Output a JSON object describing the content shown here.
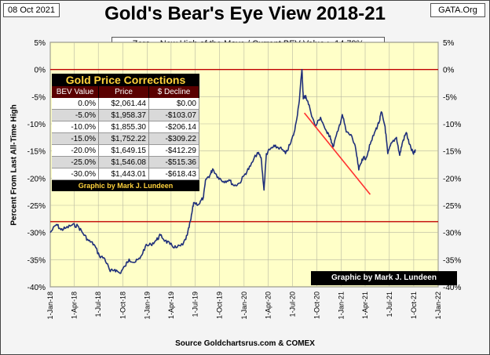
{
  "header": {
    "date": "08 Oct 2021",
    "org": "GATA.Org",
    "title": "Gold's Bear's Eye View 2018-21",
    "subtitle": "Zero = New High of the Move / Current  BEV Value : -14.79%",
    "source": "Source Goldchartsrus.com & COMEX"
  },
  "corrections_table": {
    "title": "Gold Price Corrections",
    "headers": [
      "BEV Value",
      "Price",
      "$ Decline"
    ],
    "rows": [
      [
        "0.0%",
        "$2,061.44",
        "$0.00"
      ],
      [
        "-5.0%",
        "$1,958.37",
        "-$103.07"
      ],
      [
        "-10.0%",
        "$1,855.30",
        "-$206.14"
      ],
      [
        "-15.0%",
        "$1,752.22",
        "-$309.22"
      ],
      [
        "-20.0%",
        "$1,649.15",
        "-$412.29"
      ],
      [
        "-25.0%",
        "$1,546.08",
        "-$515.36"
      ],
      [
        "-30.0%",
        "$1,443.01",
        "-$618.43"
      ]
    ],
    "footer": "Graphic by Mark J. Lundeen"
  },
  "credit_box": "Graphic by Mark J. Lundeen",
  "colors": {
    "plot_bg": "#ffffc8",
    "series": "#1f2f7a",
    "ref_lines": "#c00000",
    "trend": "#ff3030"
  },
  "chart_data": {
    "type": "line",
    "title": "Gold's Bear's Eye View 2018-21",
    "ylabel": "Percent  From Last  All-Time  High",
    "xlabel": "",
    "ylim": [
      -40,
      5
    ],
    "xlim": [
      "2018-01-01",
      "2022-01-01"
    ],
    "y_ticks": [
      "5%",
      "0%",
      "-5%",
      "-10%",
      "-15%",
      "-20%",
      "-25%",
      "-30%",
      "-35%",
      "-40%"
    ],
    "x_ticks": [
      "1-Jan-18",
      "1-Apr-18",
      "1-Jul-18",
      "1-Oct-18",
      "1-Jan-19",
      "1-Apr-19",
      "1-Jul-19",
      "1-Oct-19",
      "1-Jan-20",
      "1-Apr-20",
      "1-Jul-20",
      "1-Oct-20",
      "1-Jan-21",
      "1-Apr-21",
      "1-Jul-21",
      "1-Oct-21",
      "1-Jan-22"
    ],
    "grid": true,
    "reference_lines": [
      0,
      -28
    ],
    "trend_line": [
      {
        "x": "2020-08-15",
        "y": -8
      },
      {
        "x": "2021-04-20",
        "y": -23
      }
    ],
    "series": [
      {
        "points": [
          [
            "2018-01-01",
            -30
          ],
          [
            "2018-01-25",
            -28.5
          ],
          [
            "2018-02-10",
            -29.5
          ],
          [
            "2018-03-01",
            -29.2
          ],
          [
            "2018-03-25",
            -28.6
          ],
          [
            "2018-04-15",
            -28.8
          ],
          [
            "2018-05-05",
            -30.2
          ],
          [
            "2018-05-25",
            -31.5
          ],
          [
            "2018-06-15",
            -32.2
          ],
          [
            "2018-07-05",
            -34.3
          ],
          [
            "2018-07-25",
            -34.8
          ],
          [
            "2018-08-15",
            -37.2
          ],
          [
            "2018-09-01",
            -36.8
          ],
          [
            "2018-09-20",
            -37.5
          ],
          [
            "2018-10-10",
            -36.2
          ],
          [
            "2018-10-25",
            -34.9
          ],
          [
            "2018-11-15",
            -35.5
          ],
          [
            "2018-12-05",
            -34.8
          ],
          [
            "2018-12-25",
            -32.6
          ],
          [
            "2019-01-15",
            -32.2
          ],
          [
            "2019-02-05",
            -31.4
          ],
          [
            "2019-02-20",
            -30.5
          ],
          [
            "2019-03-10",
            -31.5
          ],
          [
            "2019-03-28",
            -32.2
          ],
          [
            "2019-04-20",
            -32.8
          ],
          [
            "2019-05-15",
            -32.3
          ],
          [
            "2019-06-01",
            -30.5
          ],
          [
            "2019-06-15",
            -27.5
          ],
          [
            "2019-06-25",
            -24.5
          ],
          [
            "2019-07-15",
            -24.8
          ],
          [
            "2019-08-01",
            -23.5
          ],
          [
            "2019-08-10",
            -20.2
          ],
          [
            "2019-08-25",
            -19.5
          ],
          [
            "2019-09-05",
            -18.3
          ],
          [
            "2019-09-25",
            -19.8
          ],
          [
            "2019-10-15",
            -20.6
          ],
          [
            "2019-11-05",
            -20.3
          ],
          [
            "2019-11-25",
            -21.4
          ],
          [
            "2019-12-15",
            -20.9
          ],
          [
            "2020-01-05",
            -19.2
          ],
          [
            "2020-01-25",
            -17.8
          ],
          [
            "2020-02-20",
            -15.3
          ],
          [
            "2020-03-05",
            -16.2
          ],
          [
            "2020-03-16",
            -22.2
          ],
          [
            "2020-03-25",
            -15.5
          ],
          [
            "2020-04-10",
            -14.6
          ],
          [
            "2020-04-25",
            -14.2
          ],
          [
            "2020-05-15",
            -14.4
          ],
          [
            "2020-06-05",
            -15.5
          ],
          [
            "2020-06-25",
            -13.5
          ],
          [
            "2020-07-10",
            -11.2
          ],
          [
            "2020-07-25",
            -6.5
          ],
          [
            "2020-08-06",
            0
          ],
          [
            "2020-08-11",
            -5.4
          ],
          [
            "2020-08-20",
            -4.8
          ],
          [
            "2020-09-05",
            -7.2
          ],
          [
            "2020-09-25",
            -10.5
          ],
          [
            "2020-10-15",
            -8.8
          ],
          [
            "2020-11-09",
            -11.8
          ],
          [
            "2020-11-20",
            -12.2
          ],
          [
            "2020-11-30",
            -14.3
          ],
          [
            "2020-12-20",
            -11.3
          ],
          [
            "2021-01-05",
            -8.3
          ],
          [
            "2021-01-20",
            -11.5
          ],
          [
            "2021-02-10",
            -12.3
          ],
          [
            "2021-02-25",
            -14.8
          ],
          [
            "2021-03-08",
            -18.5
          ],
          [
            "2021-03-20",
            -16.5
          ],
          [
            "2021-04-05",
            -16.2
          ],
          [
            "2021-04-20",
            -13.8
          ],
          [
            "2021-05-10",
            -11.2
          ],
          [
            "2021-05-25",
            -9.5
          ],
          [
            "2021-06-01",
            -7.8
          ],
          [
            "2021-06-15",
            -10.5
          ],
          [
            "2021-06-25",
            -15.5
          ],
          [
            "2021-07-10",
            -13.5
          ],
          [
            "2021-07-28",
            -12.5
          ],
          [
            "2021-08-09",
            -15.8
          ],
          [
            "2021-08-20",
            -13.3
          ],
          [
            "2021-09-03",
            -11.6
          ],
          [
            "2021-09-15",
            -13.8
          ],
          [
            "2021-09-30",
            -15.6
          ],
          [
            "2021-10-08",
            -14.79
          ]
        ]
      }
    ]
  }
}
